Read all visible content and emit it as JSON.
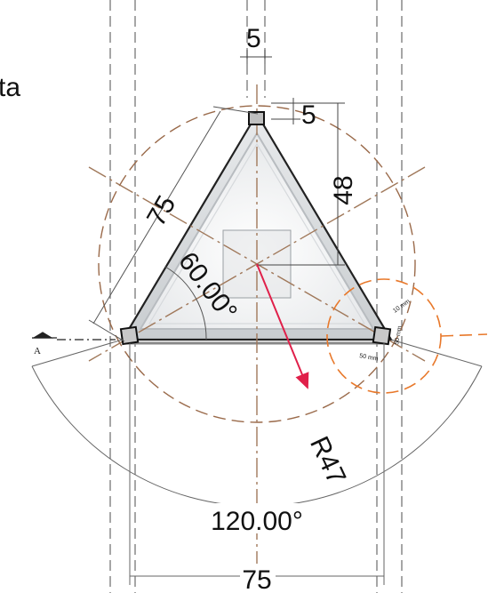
{
  "labels": {
    "partial_word": "ta",
    "dim_top_width": "5",
    "dim_top_offset": "5",
    "dim_height": "48",
    "dim_side": "75",
    "angle_base": "60.00°",
    "radius": "R47",
    "angle_arc": "120.00°",
    "dim_base": "75",
    "section_marker": "A",
    "detail_10mm": "10 mm",
    "detail_50mm_a": "50 mm",
    "detail_50mm_b": "50 mm"
  },
  "colors": {
    "centerline": "#a0785a",
    "circle": "#9a6a4a",
    "radius_arrow": "#e0204a",
    "detail_circle": "#e8782a",
    "frame": "#222222",
    "guides": "#777777"
  }
}
